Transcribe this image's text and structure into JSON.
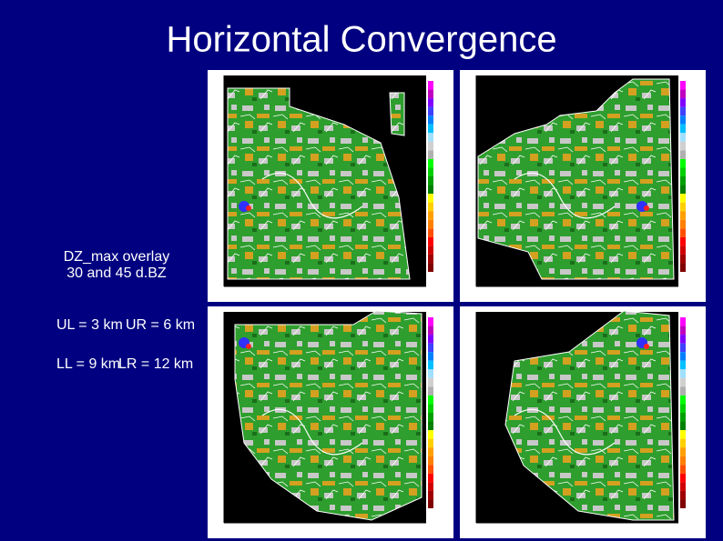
{
  "title": "Horizontal Convergence",
  "overlay_note": [
    "DZ_max overlay",
    "30 and 45 d.BZ"
  ],
  "levels": [
    [
      "UL = 3 km",
      "UR = 6 km"
    ],
    [
      "LL = 9 km",
      "LR = 12 km"
    ]
  ]
}
